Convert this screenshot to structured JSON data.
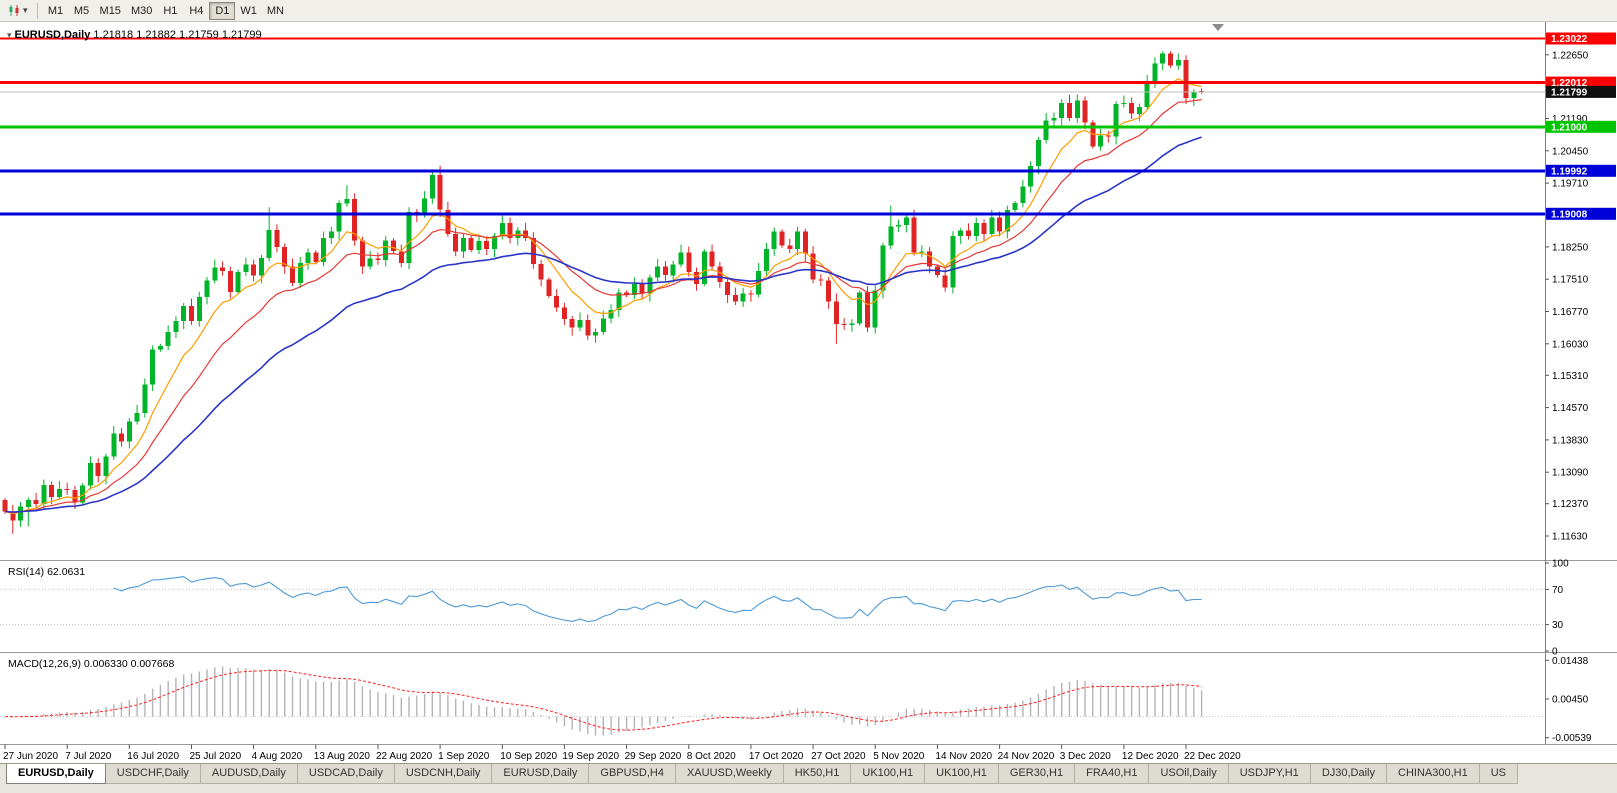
{
  "toolbar": {
    "timeframes": [
      "M1",
      "M5",
      "M15",
      "M30",
      "H1",
      "H4",
      "D1",
      "W1",
      "MN"
    ],
    "active_timeframe": "D1"
  },
  "chart": {
    "title": "EURUSD,Daily",
    "ohlc_text": "1.21818 1.21882 1.21759 1.21799",
    "marker": "▾",
    "rsi_label": "RSI(14) 62.0631",
    "macd_label": "MACD(12,26,9) 0.006330 0.007668"
  },
  "colors": {
    "candle_up": "#00b42a",
    "candle_down": "#df2423",
    "bid_line": "#c0c0c0",
    "current_badge": "#111111",
    "axis_text": "#000000"
  },
  "chart_data": {
    "type": "candlestick",
    "symbol": "EURUSD",
    "period": "Daily",
    "bars_per_label": 8,
    "bar_step": 7.77,
    "first_open": 1.1245,
    "wick": 0.0013,
    "price_range": {
      "top": 1.234,
      "bottom": 1.1108
    },
    "x_labels": [
      "27 Jun 2020",
      "7 Jul 2020",
      "16 Jul 2020",
      "25 Jul 2020",
      "4 Aug 2020",
      "13 Aug 2020",
      "22 Aug 2020",
      "1 Sep 2020",
      "10 Sep 2020",
      "19 Sep 2020",
      "29 Sep 2020",
      "8 Oct 2020",
      "17 Oct 2020",
      "27 Oct 2020",
      "5 Nov 2020",
      "14 Nov 2020",
      "24 Nov 2020",
      "3 Dec 2020",
      "12 Dec 2020",
      "22 Dec 2020"
    ],
    "y_axis_labels": [
      "1.22650",
      "1.21910",
      "1.21190",
      "1.20450",
      "1.19710",
      "1.18990",
      "1.18250",
      "1.17510",
      "1.16770",
      "1.16030",
      "1.15310",
      "1.14570",
      "1.13830",
      "1.13090",
      "1.12370",
      "1.11630"
    ],
    "closes": [
      1.1219,
      1.1198,
      1.123,
      1.1245,
      1.1236,
      1.128,
      1.1252,
      1.1271,
      1.1268,
      1.124,
      1.1279,
      1.133,
      1.13,
      1.1345,
      1.1398,
      1.138,
      1.1425,
      1.1445,
      1.151,
      1.159,
      1.1598,
      1.163,
      1.1655,
      1.169,
      1.1655,
      1.171,
      1.1748,
      1.1778,
      1.177,
      1.1722,
      1.1768,
      1.1785,
      1.176,
      1.18,
      1.1864,
      1.1825,
      1.178,
      1.1742,
      1.1788,
      1.1812,
      1.179,
      1.1845,
      1.186,
      1.1925,
      1.1935,
      1.184,
      1.178,
      1.1798,
      1.1795,
      1.184,
      1.1815,
      1.1788,
      1.1905,
      1.19,
      1.1936,
      1.199,
      1.191,
      1.1855,
      1.1815,
      1.1845,
      1.1818,
      1.1838,
      1.182,
      1.185,
      1.188,
      1.1845,
      1.1862,
      1.1845,
      1.1786,
      1.175,
      1.1713,
      1.1686,
      1.166,
      1.164,
      1.1658,
      1.1622,
      1.163,
      1.1661,
      1.168,
      1.172,
      1.1715,
      1.174,
      1.1718,
      1.1755,
      1.178,
      1.176,
      1.1785,
      1.1812,
      1.1768,
      1.174,
      1.1815,
      1.178,
      1.1745,
      1.1715,
      1.17,
      1.1718,
      1.1716,
      1.177,
      1.182,
      1.186,
      1.1828,
      1.182,
      1.186,
      1.181,
      1.175,
      1.1748,
      1.17,
      1.1648,
      1.1646,
      1.165,
      1.172,
      1.164,
      1.1725,
      1.1828,
      1.1872,
      1.1875,
      1.1892,
      1.1812,
      1.1815,
      1.178,
      1.176,
      1.1732,
      1.185,
      1.1862,
      1.185,
      1.188,
      1.1855,
      1.1892,
      1.186,
      1.191,
      1.1925,
      1.1963,
      1.201,
      1.207,
      1.2115,
      1.212,
      1.2155,
      1.212,
      1.216,
      1.211,
      1.2055,
      1.208,
      1.2078,
      1.2152,
      1.2155,
      1.213,
      1.2145,
      1.22,
      1.2245,
      1.2268,
      1.224,
      1.2253,
      1.2166,
      1.218,
      1.21799
    ],
    "special_highs": {
      "34": 1.1916,
      "44": 1.1966,
      "56": 1.2011,
      "114": 1.192,
      "149": 1.2273
    },
    "special_lows": {
      "1": 1.1168,
      "3": 1.1185,
      "75": 1.1612,
      "107": 1.1603
    },
    "last_ohlc": [
      1.21818,
      1.21882,
      1.21759,
      1.21799
    ],
    "current_price": {
      "value": "1.21799"
    },
    "price_lines": [
      {
        "value": 1.23022,
        "label": "1.23022",
        "color": "#ff0000",
        "width": 2
      },
      {
        "value": 1.22012,
        "label": "1.22012",
        "color": "#ff0000",
        "width": 3
      },
      {
        "value": 1.21,
        "label": "1.21000",
        "color": "#00c400",
        "width": 3
      },
      {
        "value": 1.19992,
        "label": "1.19992",
        "color": "#0000d8",
        "width": 3
      },
      {
        "value": 1.19008,
        "label": "1.19008",
        "color": "#0000d8",
        "width": 3
      }
    ],
    "moving_averages": [
      {
        "type": "ema",
        "period": 8,
        "color": "#ff9d00",
        "width": 1.2
      },
      {
        "type": "ema",
        "period": 16,
        "color": "#e53935",
        "width": 1.2
      },
      {
        "type": "ema",
        "period": 34,
        "color": "#2a35c8",
        "width": 1.6
      }
    ],
    "rsi": {
      "period": 14,
      "value": "62.0631",
      "levels": [
        70,
        30
      ],
      "axis_labels": [
        "100",
        "70",
        "30",
        "0"
      ],
      "color": "#4f9bd6"
    },
    "macd": {
      "fast": 12,
      "slow": 26,
      "signal": 9,
      "values": "0.006330 0.007668",
      "axis_labels": [
        "0.01438",
        "0.00450",
        "-0.00539"
      ],
      "hist_color": "#b4b4b4",
      "signal_color": "#ff2020",
      "range": {
        "top": 0.016,
        "bottom": -0.007
      }
    }
  },
  "tabs": {
    "items": [
      "EURUSD,Daily",
      "USDCHF,Daily",
      "AUDUSD,Daily",
      "USDCAD,Daily",
      "USDCNH,Daily",
      "EURUSD,Daily",
      "GBPUSD,H4",
      "XAUUSD,Weekly",
      "HK50,H1",
      "UK100,H1",
      "UK100,H1",
      "GER30,H1",
      "FRA40,H1",
      "USOil,Daily",
      "USDJPY,H1",
      "DJ30,Daily",
      "CHINA300,H1",
      "US"
    ],
    "active_index": 0
  }
}
